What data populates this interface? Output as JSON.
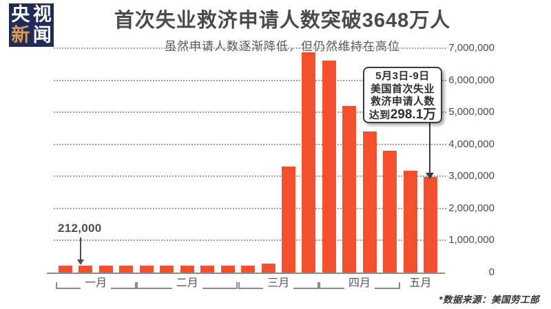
{
  "logo": {
    "bg_color": "#202B57",
    "chars": [
      {
        "text": "央",
        "color": "#FFFFFF"
      },
      {
        "text": "视",
        "color": "#FFFFFF"
      },
      {
        "text": "新",
        "color": "#D99A5B"
      },
      {
        "text": "闻",
        "color": "#FFFFFF"
      }
    ]
  },
  "header": {
    "title": "首次失业救济申请人数突破3648万人",
    "subtitle": "虽然申请人数逐渐降低，但仍然维持在高位"
  },
  "annotations": {
    "first_bar_label": "212,000",
    "callout": {
      "line1": "5月3日-9日",
      "line2": "美国首次失业",
      "line3": "救济申请人数",
      "line4_prefix": "达到",
      "line4_value": "298.1万"
    }
  },
  "footer": {
    "source": "*数据来源：美国劳工部"
  },
  "chart_data": {
    "type": "bar",
    "title": "首次失业救济申请人数突破3648万人",
    "subtitle": "虽然申请人数逐渐降低，但仍然维持在高位",
    "bar_color": "#F4502D",
    "ylim": [
      0,
      7000000
    ],
    "ytick_values": [
      0,
      1000000,
      2000000,
      3000000,
      4000000,
      5000000,
      6000000,
      7000000
    ],
    "ytick_labels": [
      "0",
      "1,000,000",
      "2,000,000",
      "3,000,000",
      "4,000,000",
      "5,000,000",
      "6,000,000",
      "7,000,000"
    ],
    "grid": "horizontal dotted",
    "legend": "none",
    "groups": [
      {
        "month": "一月",
        "bracket": true,
        "values": [
          212000,
          205000,
          218000,
          215000
        ]
      },
      {
        "month": "二月",
        "bracket": true,
        "values": [
          210000,
          212000,
          215000,
          219000,
          215000
        ]
      },
      {
        "month": "三月",
        "bracket": true,
        "values": [
          214000,
          282000,
          3300000,
          6870000
        ]
      },
      {
        "month": "四月",
        "bracket": true,
        "values": [
          6620000,
          5200000,
          4400000,
          3800000
        ]
      },
      {
        "month": "五月",
        "bracket": false,
        "values": [
          3170000,
          2981000
        ]
      }
    ],
    "callouts": [
      {
        "target_bar": "first",
        "text": "212,000"
      },
      {
        "target_bar": "last",
        "text": "5月3日-9日 美国首次失业救济申请人数 达到298.1万"
      }
    ]
  }
}
